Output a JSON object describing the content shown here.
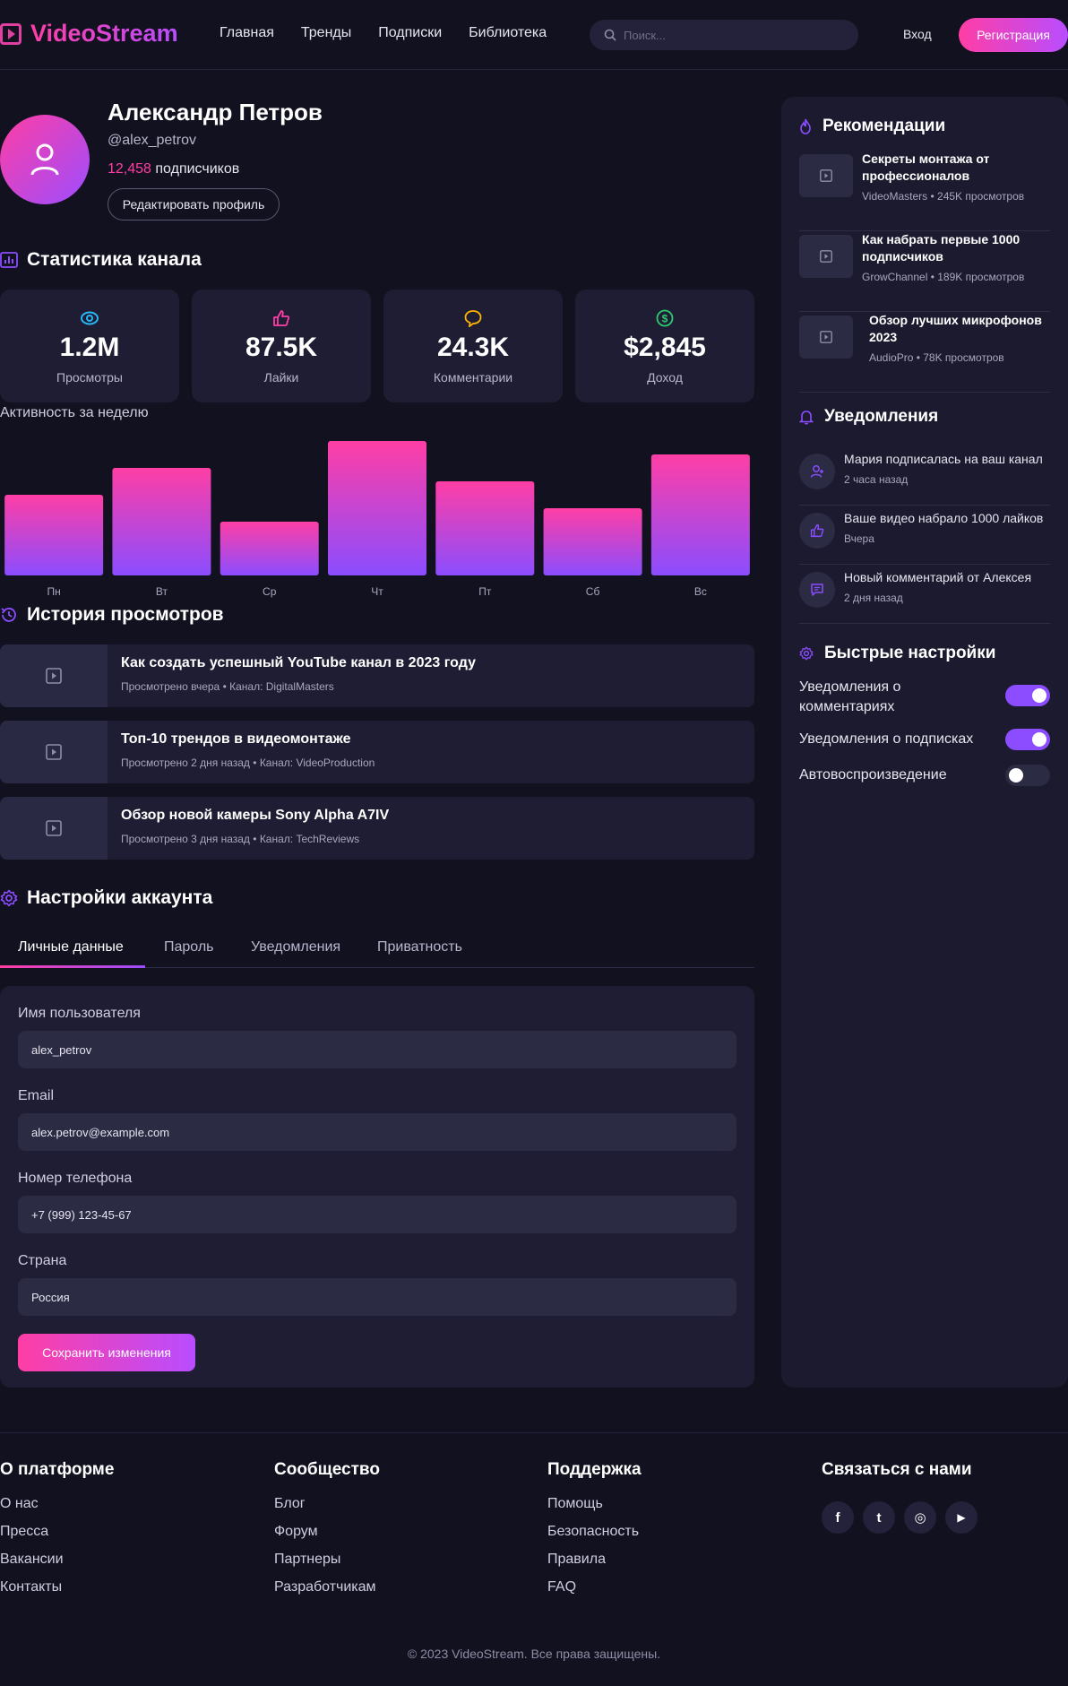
{
  "header": {
    "logo": "VideoStream",
    "nav": [
      "Главная",
      "Тренды",
      "Подписки",
      "Библиотека"
    ],
    "search_placeholder": "Поиск...",
    "login": "Вход",
    "register": "Регистрация"
  },
  "profile": {
    "name": "Александр Петров",
    "handle": "@alex_petrov",
    "subscribers_count": "12,458",
    "subscribers_label": "подписчиков",
    "edit_button": "Редактировать профиль"
  },
  "stats": {
    "title": "Статистика канала",
    "items": [
      {
        "value": "1.2M",
        "label": "Просмотры",
        "icon": "eye-icon",
        "color": "#29b6f6"
      },
      {
        "value": "87.5K",
        "label": "Лайки",
        "icon": "thumbs-up-icon",
        "color": "#ff3ea5"
      },
      {
        "value": "24.3K",
        "label": "Комментарии",
        "icon": "comment-icon",
        "color": "#ffb300"
      },
      {
        "value": "$2,845",
        "label": "Доход",
        "icon": "dollar-icon",
        "color": "#2ecc71"
      }
    ]
  },
  "chart_data": {
    "type": "bar",
    "title": "Активность за неделю",
    "categories": [
      "Пн",
      "Вт",
      "Ср",
      "Чт",
      "Пт",
      "Сб",
      "Вс"
    ],
    "values": [
      60,
      80,
      40,
      100,
      70,
      50,
      90
    ],
    "ylim": [
      0,
      100
    ],
    "grid": false,
    "colors": [
      "#ff3ea5",
      "#8b4dff"
    ]
  },
  "history": {
    "title": "История просмотров",
    "items": [
      {
        "title": "Как создать успешный YouTube канал в 2023 году",
        "watched": "Просмотрено вчера",
        "channel": "Канал: DigitalMasters"
      },
      {
        "title": "Топ-10 трендов в видеомонтаже",
        "watched": "Просмотрено 2 дня назад",
        "channel": "Канал: VideoProduction"
      },
      {
        "title": "Обзор новой камеры Sony Alpha A7IV",
        "watched": "Просмотрено 3 дня назад",
        "channel": "Канал: TechReviews"
      }
    ]
  },
  "settings": {
    "title": "Настройки аккаунта",
    "tabs": [
      "Личные данные",
      "Пароль",
      "Уведомления",
      "Приватность"
    ],
    "fields": [
      {
        "label": "Имя пользователя",
        "value": "alex_petrov"
      },
      {
        "label": "Email",
        "value": "alex.petrov@example.com"
      },
      {
        "label": "Номер телефона",
        "value": "+7 (999) 123-45-67"
      },
      {
        "label": "Страна",
        "value": "Россия"
      }
    ],
    "save_button": "Сохранить изменения"
  },
  "sidebar": {
    "recommendations": {
      "title": "Рекомендации",
      "items": [
        {
          "title": "Секреты монтажа от профессионалов",
          "channel": "VideoMasters",
          "views": "245K просмотров"
        },
        {
          "title": "Как набрать первые 1000 подписчиков",
          "channel": "GrowChannel",
          "views": "189K просмотров"
        },
        {
          "title": "Обзор лучших микрофонов 2023",
          "channel": "AudioPro",
          "views": "78K просмотров"
        }
      ]
    },
    "notifications": {
      "title": "Уведомления",
      "items": [
        {
          "text": "Мария подписалась на ваш канал",
          "time": "2 часа назад",
          "icon": "user-icon"
        },
        {
          "text": "Ваше видео набрало 1000 лайков",
          "time": "Вчера",
          "icon": "thumbs-up-icon"
        },
        {
          "text": "Новый комментарий от Алексея",
          "time": "2 дня назад",
          "icon": "comment-icon"
        }
      ]
    },
    "quick_settings": {
      "title": "Быстрые настройки",
      "items": [
        {
          "label": "Уведомления о комментариях",
          "on": true
        },
        {
          "label": "Уведомления о подписках",
          "on": true
        },
        {
          "label": "Автовоспроизведение",
          "on": false
        }
      ]
    }
  },
  "footer": {
    "columns": [
      {
        "title": "О платформе",
        "links": [
          "О нас",
          "Пресса",
          "Вакансии",
          "Контакты"
        ]
      },
      {
        "title": "Сообщество",
        "links": [
          "Блог",
          "Форум",
          "Партнеры",
          "Разработчикам"
        ]
      },
      {
        "title": "Поддержка",
        "links": [
          "Помощь",
          "Безопасность",
          "Правила",
          "FAQ"
        ]
      }
    ],
    "contact_title": "Связаться с нами",
    "social": [
      {
        "icon": "facebook-icon",
        "glyph": "f"
      },
      {
        "icon": "twitter-icon",
        "glyph": "t"
      },
      {
        "icon": "instagram-icon",
        "glyph": "◎"
      },
      {
        "icon": "youtube-icon",
        "glyph": "▶"
      }
    ],
    "copyright": "© 2023 VideoStream. Все права защищены."
  },
  "colors": {
    "accent_pink": "#ff3ea5",
    "accent_purple": "#8b4dff",
    "background": "#12111f",
    "card": "#1e1d33"
  }
}
